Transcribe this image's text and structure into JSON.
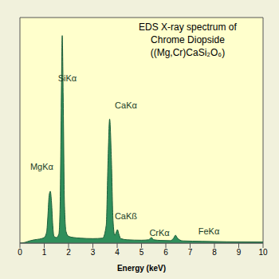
{
  "chart_data": {
    "type": "area",
    "title": [
      "EDS X-ray spectrum of",
      "Chrome Diopside ((Mg,Cr)CaSi₂O₆)"
    ],
    "x_label": "Energy (keV)",
    "x": [
      0,
      0.2,
      0.4,
      0.6,
      0.8,
      1.0,
      1.1,
      1.15,
      1.2,
      1.25,
      1.3,
      1.35,
      1.4,
      1.5,
      1.6,
      1.65,
      1.7,
      1.74,
      1.78,
      1.83,
      1.9,
      2.0,
      2.2,
      2.5,
      3.0,
      3.4,
      3.55,
      3.62,
      3.69,
      3.76,
      3.83,
      3.9,
      3.95,
      4.01,
      4.07,
      4.15,
      4.4,
      5.0,
      5.3,
      5.41,
      5.5,
      5.8,
      6.2,
      6.32,
      6.4,
      6.48,
      6.7,
      7.5,
      8.5,
      10
    ],
    "values": [
      0,
      0.3,
      1,
      1.5,
      1.8,
      2.5,
      5,
      12,
      21,
      23,
      18,
      8,
      3,
      2.5,
      4,
      15,
      60,
      92,
      65,
      18,
      5,
      3,
      2.5,
      2.2,
      2,
      2.2,
      8,
      35,
      55,
      38,
      10,
      3.5,
      4.5,
      6,
      4,
      2,
      1.5,
      1.3,
      1.5,
      2.5,
      1.5,
      1.2,
      1.1,
      2.2,
      3.5,
      2.2,
      1.0,
      0.8,
      0.6,
      0.5
    ],
    "color": "#2f8f5b",
    "xlim": [
      0,
      10
    ],
    "xticks": [
      0,
      1,
      2,
      3,
      4,
      5,
      6,
      7,
      8,
      9,
      10
    ],
    "ylim": [
      0,
      100
    ],
    "tick_labels": "x",
    "grid": false,
    "annotations": [
      {
        "text": "MgKα",
        "x": 0.9,
        "y": 34
      },
      {
        "text": "SiKα",
        "x": 1.95,
        "y": 73
      },
      {
        "text": "CaKα",
        "x": 4.36,
        "y": 61
      },
      {
        "text": "CaKß",
        "x": 4.36,
        "y": 12
      },
      {
        "text": "CrKα",
        "x": 5.74,
        "y": 4.6
      },
      {
        "text": "FeKα",
        "x": 7.77,
        "y": 5.3
      }
    ]
  }
}
